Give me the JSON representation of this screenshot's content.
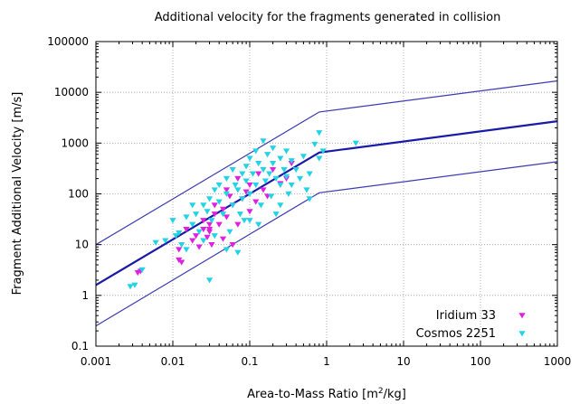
{
  "chart_data": {
    "type": "scatter",
    "title": "Additional velocity for the fragments generated in collision",
    "xlabel": "Area-to-Mass Ratio [m²/kg]",
    "xlabel_base": "Area-to-Mass Ratio [m",
    "xlabel_sup": "2",
    "xlabel_end": "/kg]",
    "ylabel": "Fragment Additional Velocity [m/s]",
    "x_scale": "log",
    "y_scale": "log",
    "xlim": [
      0.001,
      1000
    ],
    "ylim": [
      0.1,
      100000
    ],
    "grid": true,
    "legend_position": "bottom-right",
    "x_ticks": [
      0.001,
      0.01,
      0.1,
      1,
      10,
      100,
      1000
    ],
    "x_tick_labels": [
      "0.001",
      "0.01",
      "0.1",
      "1",
      "10",
      "100",
      "1000"
    ],
    "y_ticks": [
      0.1,
      1,
      10,
      100,
      1000,
      10000,
      100000
    ],
    "y_tick_labels": [
      "0.1",
      "1",
      "10",
      "100",
      "1000",
      "10000",
      "100000"
    ],
    "lines": [
      {
        "name": "upper-bound",
        "color": "#3b3bb3",
        "width": 1.2,
        "points": [
          [
            0.001,
            10
          ],
          [
            0.8,
            4100
          ],
          [
            1000,
            16800
          ]
        ]
      },
      {
        "name": "mean",
        "color": "#1a1aa8",
        "width": 2.2,
        "points": [
          [
            0.001,
            1.6
          ],
          [
            0.8,
            650
          ],
          [
            1000,
            2700
          ]
        ]
      },
      {
        "name": "lower-bound",
        "color": "#3b3bb3",
        "width": 1.2,
        "points": [
          [
            0.001,
            0.25
          ],
          [
            0.8,
            105
          ],
          [
            1000,
            430
          ]
        ]
      }
    ],
    "series": [
      {
        "name": "Iridium 33",
        "color": "#e020e0",
        "marker": "triangle-down",
        "points": [
          [
            0.0035,
            2.8
          ],
          [
            0.0038,
            3.0
          ],
          [
            0.012,
            5.0
          ],
          [
            0.012,
            8.0
          ],
          [
            0.013,
            4.5
          ],
          [
            0.015,
            20
          ],
          [
            0.018,
            12
          ],
          [
            0.02,
            15
          ],
          [
            0.022,
            9
          ],
          [
            0.025,
            20
          ],
          [
            0.025,
            30
          ],
          [
            0.028,
            14
          ],
          [
            0.03,
            18
          ],
          [
            0.03,
            25
          ],
          [
            0.032,
            10
          ],
          [
            0.035,
            40
          ],
          [
            0.035,
            60
          ],
          [
            0.04,
            25
          ],
          [
            0.045,
            50
          ],
          [
            0.05,
            120
          ],
          [
            0.05,
            35
          ],
          [
            0.055,
            90
          ],
          [
            0.06,
            60
          ],
          [
            0.07,
            200
          ],
          [
            0.07,
            25
          ],
          [
            0.08,
            80
          ],
          [
            0.09,
            110
          ],
          [
            0.1,
            150
          ],
          [
            0.1,
            45
          ],
          [
            0.12,
            70
          ],
          [
            0.13,
            250
          ],
          [
            0.15,
            120
          ],
          [
            0.17,
            90
          ],
          [
            0.2,
            300
          ],
          [
            0.25,
            160
          ],
          [
            0.3,
            200
          ],
          [
            0.35,
            400
          ],
          [
            0.03,
            20
          ],
          [
            0.06,
            10
          ],
          [
            0.045,
            13
          ]
        ]
      },
      {
        "name": "Cosmos 2251",
        "color": "#22d3e6",
        "marker": "triangle-down",
        "points": [
          [
            0.0028,
            1.5
          ],
          [
            0.0032,
            1.6
          ],
          [
            0.004,
            3.2
          ],
          [
            0.006,
            11
          ],
          [
            0.008,
            12
          ],
          [
            0.01,
            30
          ],
          [
            0.011,
            15
          ],
          [
            0.012,
            17
          ],
          [
            0.013,
            10
          ],
          [
            0.015,
            35
          ],
          [
            0.015,
            8
          ],
          [
            0.018,
            25
          ],
          [
            0.02,
            40
          ],
          [
            0.022,
            18
          ],
          [
            0.025,
            60
          ],
          [
            0.025,
            12
          ],
          [
            0.028,
            45
          ],
          [
            0.03,
            80
          ],
          [
            0.03,
            2.0
          ],
          [
            0.032,
            30
          ],
          [
            0.035,
            120
          ],
          [
            0.035,
            15
          ],
          [
            0.04,
            150
          ],
          [
            0.04,
            70
          ],
          [
            0.045,
            40
          ],
          [
            0.05,
            200
          ],
          [
            0.05,
            100
          ],
          [
            0.055,
            18
          ],
          [
            0.06,
            300
          ],
          [
            0.06,
            60
          ],
          [
            0.065,
            150
          ],
          [
            0.07,
            120
          ],
          [
            0.07,
            7
          ],
          [
            0.075,
            40
          ],
          [
            0.08,
            250
          ],
          [
            0.08,
            80
          ],
          [
            0.09,
            350
          ],
          [
            0.09,
            180
          ],
          [
            0.1,
            500
          ],
          [
            0.1,
            100
          ],
          [
            0.1,
            30
          ],
          [
            0.11,
            250
          ],
          [
            0.12,
            700
          ],
          [
            0.12,
            150
          ],
          [
            0.13,
            400
          ],
          [
            0.14,
            60
          ],
          [
            0.15,
            1100
          ],
          [
            0.15,
            300
          ],
          [
            0.16,
            180
          ],
          [
            0.17,
            600
          ],
          [
            0.18,
            250
          ],
          [
            0.19,
            90
          ],
          [
            0.2,
            800
          ],
          [
            0.2,
            400
          ],
          [
            0.22,
            200
          ],
          [
            0.22,
            40
          ],
          [
            0.25,
            500
          ],
          [
            0.25,
            150
          ],
          [
            0.28,
            300
          ],
          [
            0.3,
            700
          ],
          [
            0.3,
            220
          ],
          [
            0.32,
            100
          ],
          [
            0.35,
            450
          ],
          [
            0.35,
            150
          ],
          [
            0.4,
            300
          ],
          [
            0.45,
            200
          ],
          [
            0.5,
            550
          ],
          [
            0.55,
            120
          ],
          [
            0.6,
            250
          ],
          [
            0.7,
            950
          ],
          [
            0.8,
            1600
          ],
          [
            0.8,
            500
          ],
          [
            0.9,
            700
          ],
          [
            2.4,
            1000
          ],
          [
            0.6,
            80
          ],
          [
            0.25,
            60
          ],
          [
            0.13,
            25
          ],
          [
            0.018,
            60
          ],
          [
            0.05,
            8
          ],
          [
            0.085,
            30
          ]
        ]
      }
    ]
  }
}
